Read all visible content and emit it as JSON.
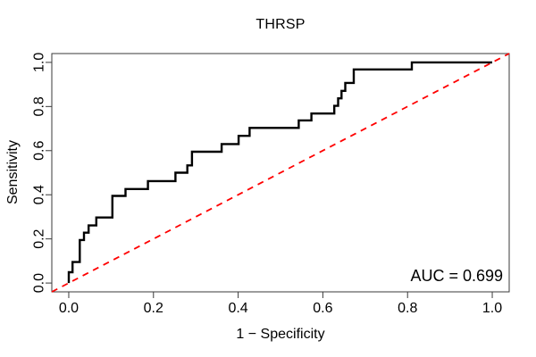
{
  "title": "THRSP",
  "axes": {
    "x": {
      "label": "1 − Specificity",
      "tick_labels": [
        "0.0",
        "0.2",
        "0.4",
        "0.6",
        "0.8",
        "1.0"
      ],
      "tick_values": [
        0.0,
        0.2,
        0.4,
        0.6,
        0.8,
        1.0
      ]
    },
    "y": {
      "label": "Sensitivity",
      "tick_labels": [
        "0.0",
        "0.2",
        "0.4",
        "0.6",
        "0.8",
        "1.0"
      ],
      "tick_values": [
        0.0,
        0.2,
        0.4,
        0.6,
        0.8,
        1.0
      ]
    }
  },
  "annotation": {
    "auc_label": "AUC = 0.699",
    "auc_value": 0.699
  },
  "colors": {
    "roc_curve": "#000000",
    "diagonal": "#ff0000",
    "frame": "#3a3a3a",
    "text": "#000000",
    "background": "#ffffff"
  },
  "chart_data": {
    "type": "line",
    "subtype": "roc-step-curve",
    "title": "THRSP",
    "xlabel": "1 − Specificity",
    "ylabel": "Sensitivity",
    "xlim": [
      -0.04,
      1.04
    ],
    "ylim": [
      -0.04,
      1.04
    ],
    "grid": false,
    "auc": 0.699,
    "series": [
      {
        "name": "ROC curve",
        "style": "step",
        "color": "#000000",
        "line_width": 2.4,
        "points": [
          [
            0.0,
            0.0
          ],
          [
            0.0,
            0.049
          ],
          [
            0.009,
            0.095
          ],
          [
            0.026,
            0.195
          ],
          [
            0.036,
            0.228
          ],
          [
            0.047,
            0.261
          ],
          [
            0.065,
            0.297
          ],
          [
            0.103,
            0.395
          ],
          [
            0.134,
            0.426
          ],
          [
            0.187,
            0.462
          ],
          [
            0.252,
            0.5
          ],
          [
            0.28,
            0.533
          ],
          [
            0.291,
            0.595
          ],
          [
            0.361,
            0.63
          ],
          [
            0.401,
            0.667
          ],
          [
            0.427,
            0.703
          ],
          [
            0.543,
            0.737
          ],
          [
            0.573,
            0.768
          ],
          [
            0.627,
            0.803
          ],
          [
            0.636,
            0.837
          ],
          [
            0.644,
            0.871
          ],
          [
            0.653,
            0.907
          ],
          [
            0.673,
            0.968
          ],
          [
            0.81,
            1.0
          ],
          [
            1.0,
            1.0
          ]
        ]
      },
      {
        "name": "chance diagonal",
        "style": "dashed",
        "color": "#ff0000",
        "line_width": 1.8,
        "points": [
          [
            -0.04,
            -0.04
          ],
          [
            1.04,
            1.04
          ]
        ]
      }
    ]
  }
}
